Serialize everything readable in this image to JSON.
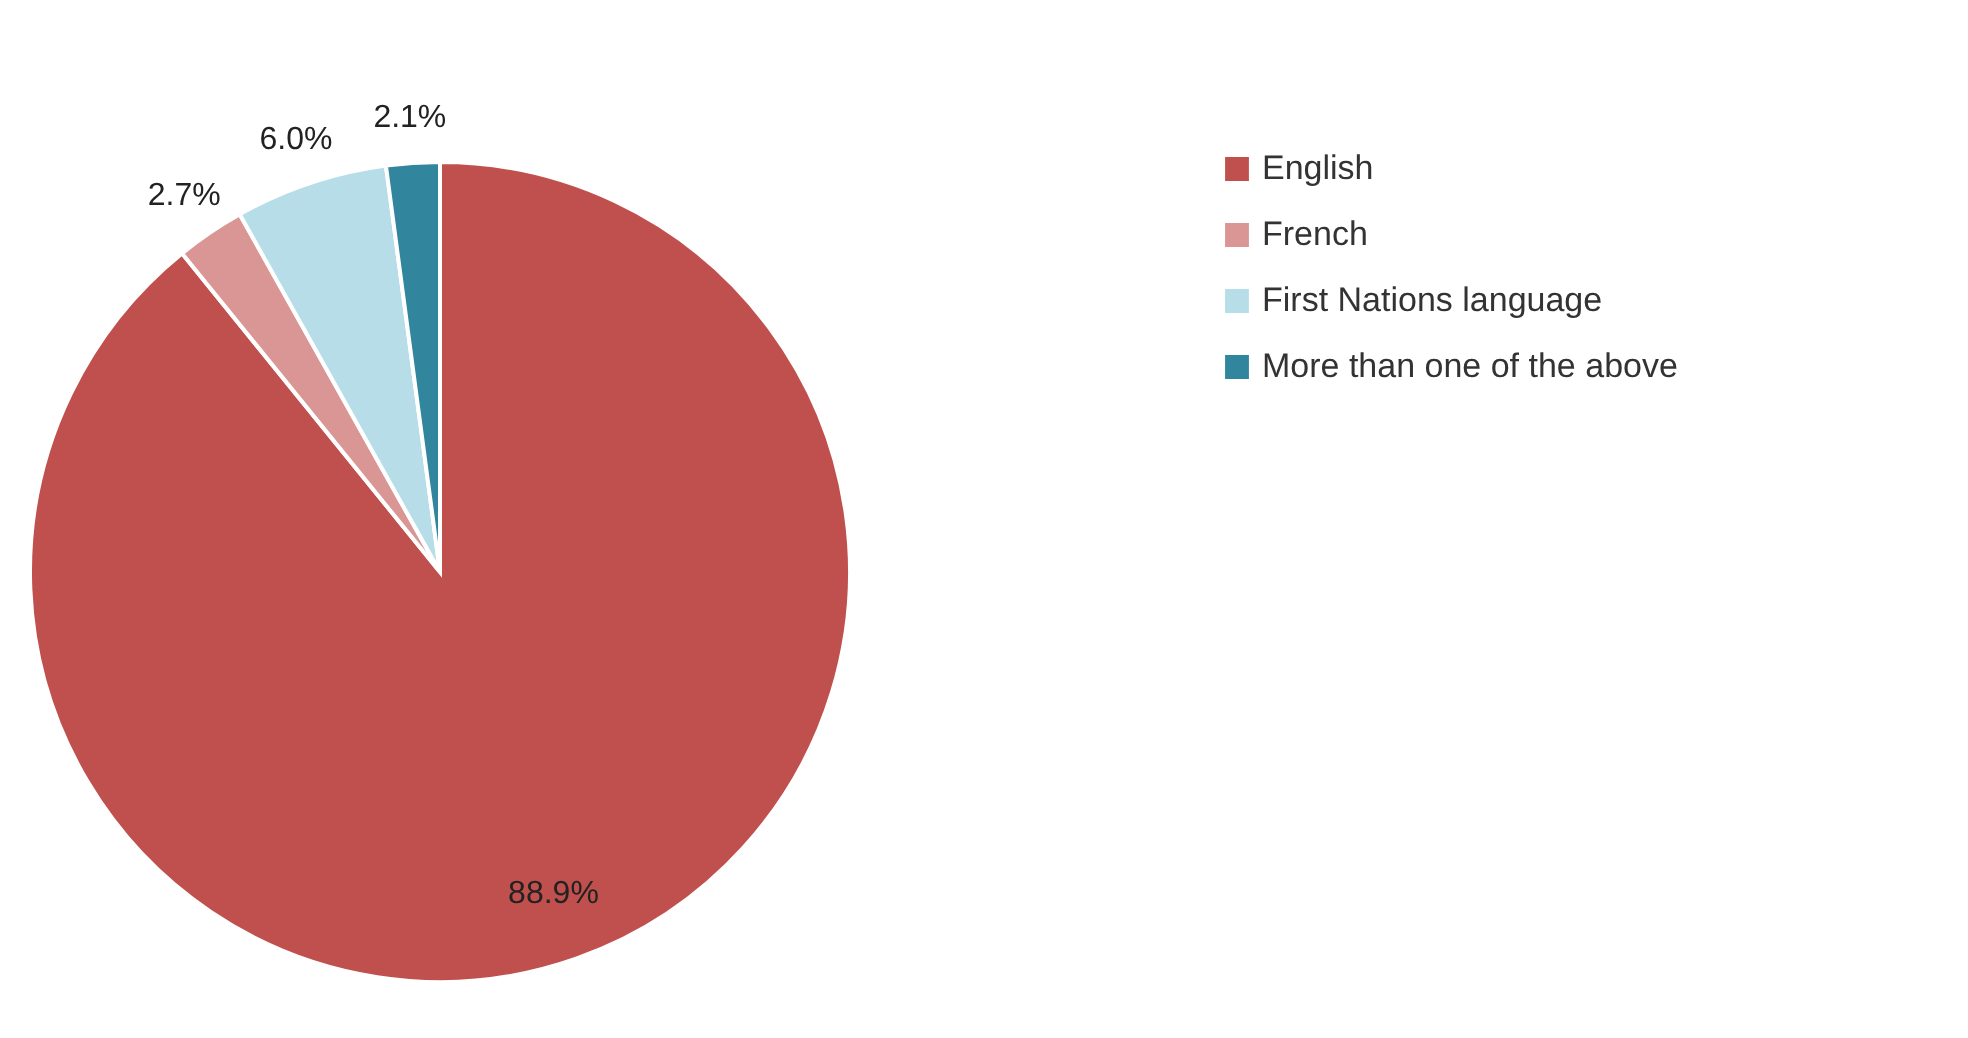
{
  "chart_data": {
    "type": "pie",
    "categories": [
      "English",
      "French",
      "First Nations language",
      "More than one of the above"
    ],
    "values": [
      88.9,
      2.7,
      6.0,
      2.1
    ],
    "colors": [
      "#c0504d",
      "#d99694",
      "#b7dee8",
      "#31859c"
    ],
    "value_labels": [
      "88.9%",
      "2.7%",
      "6.0%",
      "2.1%"
    ],
    "legend": "right"
  }
}
